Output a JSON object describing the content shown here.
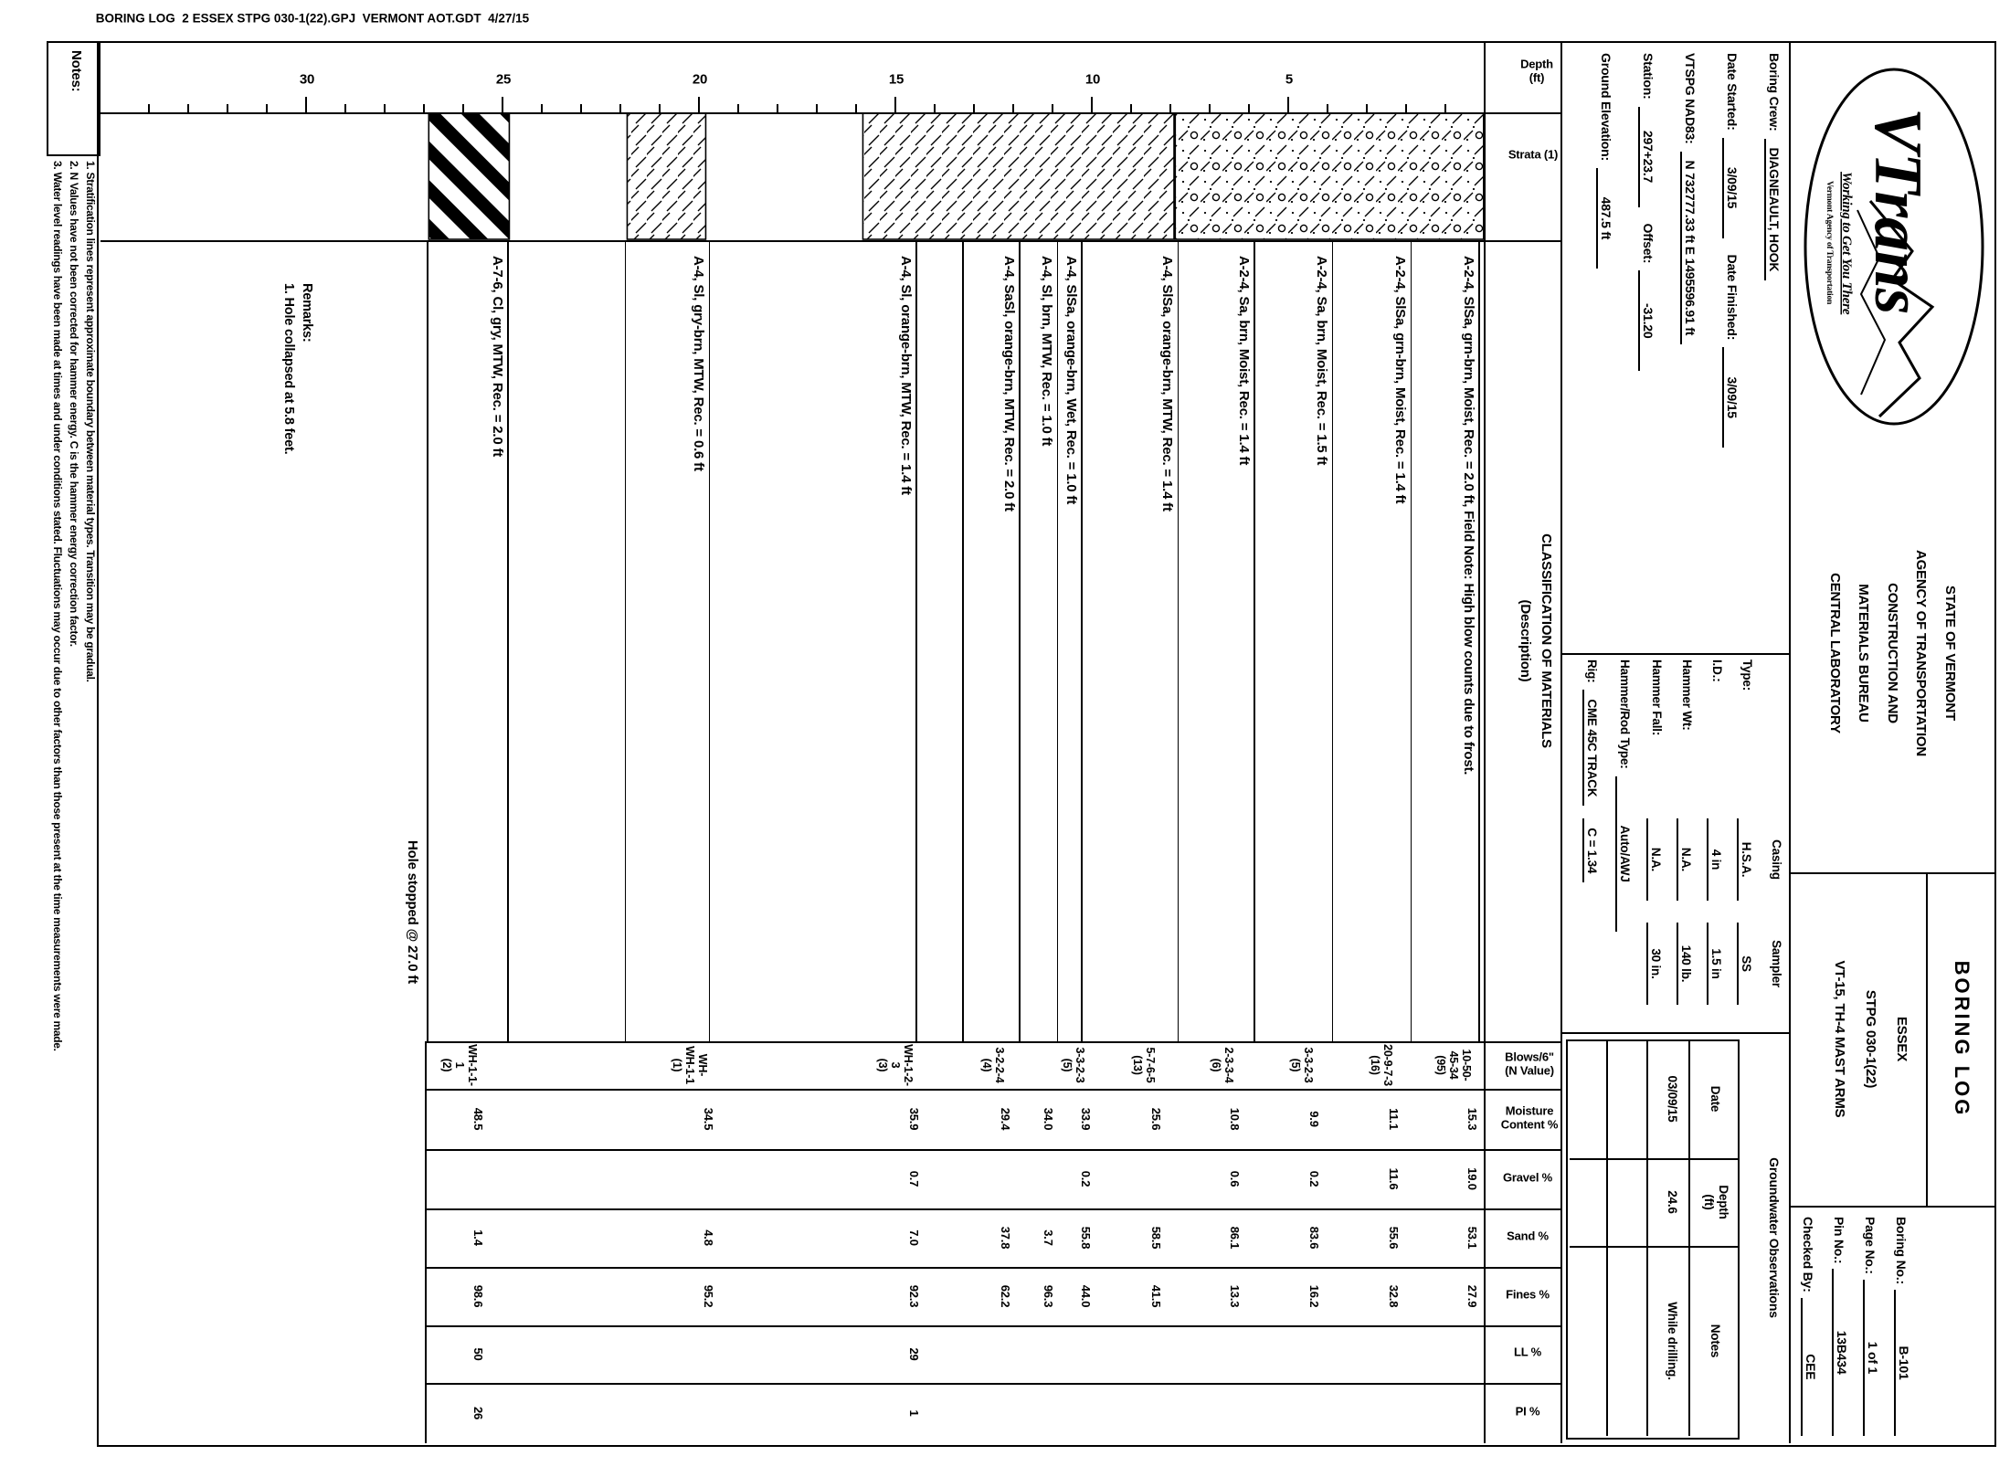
{
  "caption": "BORING LOG  2 ESSEX STPG 030-1(22).GPJ  VERMONT AOT.GDT  4/27/15",
  "logo": {
    "brand": "VTrans",
    "tagline": "Working to Get You There",
    "subtext": "Vermont Agency of Transportation"
  },
  "agency_lines": [
    "STATE OF VERMONT",
    "AGENCY OF TRANSPORTATION",
    "CONSTRUCTION AND",
    "MATERIALS BUREAU",
    "CENTRAL LABORATORY"
  ],
  "title_block": {
    "title": "BORING LOG",
    "project_lines": [
      "ESSEX",
      "STPG 030-1(22)",
      "VT-15, TH-4 MAST ARMS"
    ],
    "fields": [
      {
        "label": "Boring No.:",
        "value": "B-101"
      },
      {
        "label": "Page No.:",
        "value": "1 of 1"
      },
      {
        "label": "Pin No.:",
        "value": "13B434"
      },
      {
        "label": "Checked By:",
        "value": "CEE"
      }
    ]
  },
  "info_lines": [
    [
      {
        "label": "Boring Crew:",
        "value": "DIAGNEAULT, HOOK"
      }
    ],
    [
      {
        "label": "Date Started:",
        "value": "3/09/15"
      },
      {
        "label": "Date Finished:",
        "value": "3/09/15"
      }
    ],
    [
      {
        "label": "VTSPG NAD83:",
        "value": "N 732777.33 ft   E 1495596.91 ft"
      }
    ],
    [
      {
        "label": "Station:",
        "value": "297+23.7"
      },
      {
        "label": "Offset:",
        "value": "-31.20"
      }
    ],
    [
      {
        "label": "Ground Elevation:",
        "value": "487.5 ft"
      }
    ]
  ],
  "casing_sampler": {
    "col_headers": [
      "Casing",
      "Sampler"
    ],
    "rows": [
      {
        "label": "Type:",
        "casing": "H.S.A.",
        "sampler": "SS"
      },
      {
        "label": "I.D.:",
        "casing": "4 in",
        "sampler": "1.5 in"
      },
      {
        "label": "Hammer Wt:",
        "casing": "N.A.",
        "sampler": "140 lb."
      },
      {
        "label": "Hammer Fall:",
        "casing": "N.A.",
        "sampler": "30 in."
      }
    ],
    "hammer_rod": {
      "label": "Hammer/Rod Type:",
      "value": "Auto/AWJ"
    },
    "rig": {
      "label": "Rig:",
      "value": "CME 45C TRACK",
      "c_factor": "C = 1.34"
    }
  },
  "groundwater": {
    "title": "Groundwater Observations",
    "columns": [
      "Date",
      "Depth\n(ft)",
      "Notes"
    ],
    "rows": [
      [
        "03/09/15",
        "24.6",
        "While drilling."
      ],
      [
        "",
        "",
        ""
      ],
      [
        "",
        "",
        ""
      ]
    ]
  },
  "log_headers": {
    "depth": "Depth\n(ft)",
    "strata": "Strata (1)",
    "classification": "CLASSIFICATION OF MATERIALS\n(Description)",
    "blows": "Blows/6\"\n(N Value)",
    "moisture": "Moisture\nContent %",
    "gravel": "Gravel %",
    "sand": "Sand %",
    "fines": "Fines %",
    "ll": "LL %",
    "pi": "PI %"
  },
  "log": {
    "depth_ticks": [
      5,
      10,
      15,
      20,
      25,
      30
    ],
    "strata_bands": [
      {
        "from": 0.05,
        "to": 7.9,
        "pattern": "sand-gravel"
      },
      {
        "from": 7.93,
        "to": 15.85,
        "pattern": "silt"
      },
      {
        "from": 19.85,
        "to": 21.85,
        "pattern": "silt"
      },
      {
        "from": 24.85,
        "to": 26.9,
        "pattern": "clay"
      }
    ],
    "description_rows": [
      {
        "from": 0.15,
        "to": 1.88,
        "text": "A-2-4, SlSa, grn-brn, Moist, Rec. = 2.0 ft, Field Note: High blow counts due to frost."
      },
      {
        "from": 1.88,
        "to": 3.88,
        "text": "A-2-4, SlSa, grn-brn, Moist, Rec. = 1.4 ft"
      },
      {
        "from": 3.88,
        "to": 5.86,
        "text": "A-2-4, Sa, brn, Moist, Rec. = 1.5 ft"
      },
      {
        "from": 5.86,
        "to": 7.81,
        "text": "A-2-4, Sa, brn, Moist, Rec. = 1.4 ft"
      },
      {
        "from": 7.81,
        "to": 10.26,
        "text": "A-4, SlSa, orange-brn, MTW, Rec. = 1.4 ft"
      },
      {
        "from": 10.26,
        "to": 10.88,
        "text": "A-4, SlSa, orange-brn, Wet, Rec. = 1.0 ft"
      },
      {
        "from": 10.88,
        "to": 11.84,
        "text": "A-4, Sl, brn, MTW, Rec. = 1.0 ft"
      },
      {
        "from": 11.84,
        "to": 13.28,
        "text": "A-4, SaSl, orange-brn, MTW, Rec. = 2.0 ft"
      },
      {
        "from": 13.28,
        "to": 14.47,
        "text": ""
      },
      {
        "from": 14.47,
        "to": 19.74,
        "text": "A-4, Sl, orange-brn, MTW, Rec. = 1.4 ft"
      },
      {
        "from": 19.74,
        "to": 21.88,
        "text": "A-4, Sl, gry-brn, MTW, Rec. = 0.6 ft"
      },
      {
        "from": 21.88,
        "to": 24.86,
        "text": ""
      },
      {
        "from": 24.86,
        "to": 26.91,
        "text": "A-7-6, Cl, gry, MTW, Rec. = 2.0 ft"
      },
      {
        "from": 26.91,
        "to": 35,
        "text": ""
      }
    ],
    "samples": [
      {
        "depth": 0.47,
        "blows": "10-50-\n45-34\n(95)",
        "moisture": "15.3",
        "gravel": "19.0",
        "sand": "53.1",
        "fines": "27.9",
        "ll": "",
        "pi": ""
      },
      {
        "depth": 2.47,
        "blows": "20-9-7-3\n(16)",
        "moisture": "11.1",
        "gravel": "11.6",
        "sand": "55.6",
        "fines": "32.8",
        "ll": "",
        "pi": ""
      },
      {
        "depth": 4.49,
        "blows": "3-3-2-3\n(5)",
        "moisture": "9.9",
        "gravel": "0.2",
        "sand": "83.6",
        "fines": "16.2",
        "ll": "",
        "pi": ""
      },
      {
        "depth": 6.51,
        "blows": "2-3-3-4\n(6)",
        "moisture": "10.8",
        "gravel": "0.6",
        "sand": "86.1",
        "fines": "13.3",
        "ll": "",
        "pi": ""
      },
      {
        "depth": 8.51,
        "blows": "5-7-6-5\n(13)",
        "moisture": "25.6",
        "gravel": "",
        "sand": "58.5",
        "fines": "41.5",
        "ll": "",
        "pi": ""
      },
      {
        "depth": 10.3,
        "blows": "3-3-2-3\n(5)",
        "moisture": "33.9",
        "gravel": "0.2",
        "sand": "55.8",
        "fines": "44.0",
        "ll": "",
        "pi": ""
      },
      {
        "depth": 11.26,
        "blows": "",
        "moisture": "34.0",
        "gravel": "",
        "sand": "3.7",
        "fines": "96.3",
        "ll": "",
        "pi": ""
      },
      {
        "depth": 12.35,
        "blows": "3-2-2-4\n(4)",
        "moisture": "29.4",
        "gravel": "",
        "sand": "37.8",
        "fines": "62.2",
        "ll": "",
        "pi": ""
      },
      {
        "depth": 14.67,
        "blows": "WH-1-2-\n3\n(3)",
        "moisture": "35.9",
        "gravel": "0.7",
        "sand": "7.0",
        "fines": "92.3",
        "ll": "29",
        "pi": "1"
      },
      {
        "depth": 19.9,
        "blows": "WH-\nWH-1-1\n(1)",
        "moisture": "34.5",
        "gravel": "",
        "sand": "4.8",
        "fines": "95.2",
        "ll": "",
        "pi": ""
      },
      {
        "depth": 25.77,
        "blows": "WH-1-1-\n1\n(2)",
        "moisture": "48.5",
        "gravel": "",
        "sand": "1.4",
        "fines": "98.6",
        "ll": "50",
        "pi": "26"
      }
    ],
    "hole_stopped": "Hole stopped @ 27.0 ft",
    "remarks": [
      "Remarks:",
      "1. Hole collapsed at 5.8 feet."
    ]
  },
  "notes": {
    "label": "Notes:",
    "items": [
      "1. Stratification lines represent approximate boundary between material types. Transition may be gradual.",
      "2. N Values have not been corrected for hammer energy. C is the hammer energy correction factor.",
      "3. Water level readings have been made at times and under conditions stated. Fluctuations may occur due to other factors than those present at the time measurements were made."
    ]
  }
}
